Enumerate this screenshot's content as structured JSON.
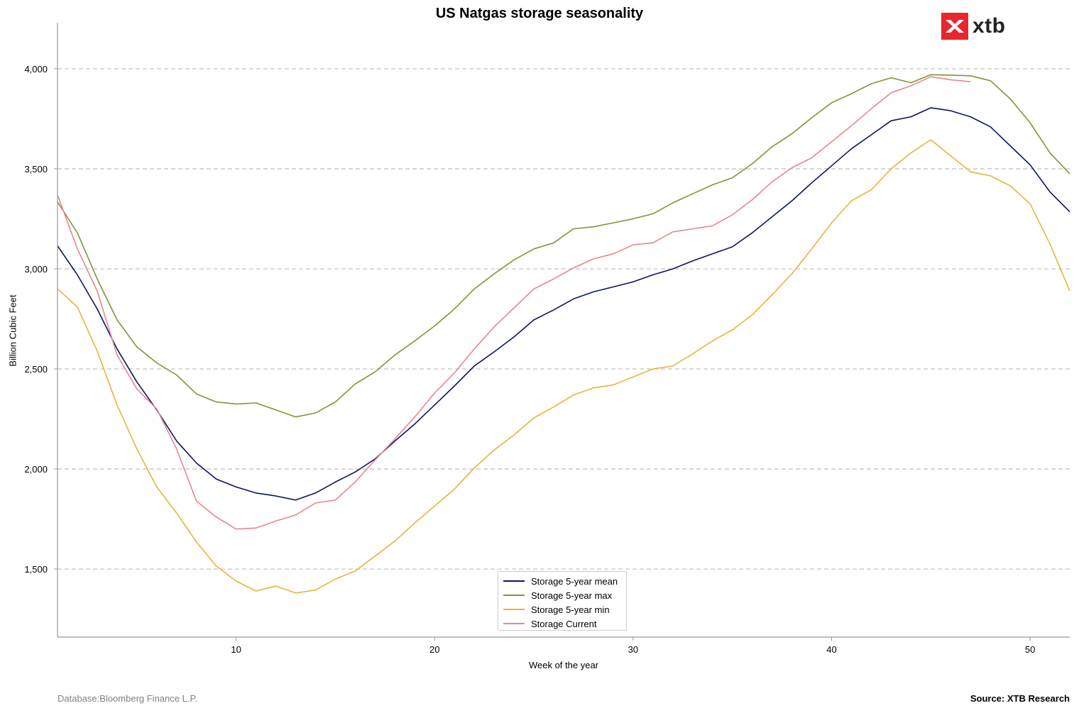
{
  "header": {
    "title": "US Natgas storage seasonality"
  },
  "logo": {
    "text": "xtb",
    "color": "#e8262d"
  },
  "footer": {
    "left": "Database:Bloomberg Finance L.P.",
    "right": "Source: XTB Research"
  },
  "chart_data": {
    "type": "line",
    "title": "US Natgas storage seasonality",
    "xlabel": "Week of the year",
    "ylabel": "Billion Cubic Feet",
    "xlim": [
      1,
      52
    ],
    "ylim": [
      1160,
      4230
    ],
    "xticks": [
      10,
      20,
      30,
      40,
      50
    ],
    "yticks": [
      1500,
      2000,
      2500,
      3000,
      3500,
      4000
    ],
    "ytick_labels": [
      "1,500",
      "2,000",
      "2,500",
      "3,000",
      "3,500",
      "4,000"
    ],
    "grid": "horizontal dashed",
    "legend_position": "bottom-center",
    "series": [
      {
        "name": "Storage 5-year mean",
        "color": "#0b1466",
        "x": [
          1,
          2,
          3,
          4,
          5,
          6,
          7,
          8,
          9,
          10,
          11,
          12,
          13,
          14,
          15,
          16,
          17,
          18,
          19,
          20,
          21,
          22,
          23,
          24,
          25,
          26,
          27,
          28,
          29,
          30,
          31,
          32,
          33,
          34,
          35,
          36,
          37,
          38,
          39,
          40,
          41,
          42,
          43,
          44,
          45,
          46,
          47,
          48,
          49,
          50,
          51,
          52
        ],
        "values": [
          3115,
          2970,
          2800,
          2600,
          2435,
          2295,
          2140,
          2030,
          1950,
          1910,
          1880,
          1865,
          1845,
          1880,
          1935,
          1985,
          2050,
          2140,
          2225,
          2320,
          2415,
          2515,
          2585,
          2660,
          2745,
          2795,
          2850,
          2885,
          2910,
          2935,
          2970,
          3000,
          3040,
          3075,
          3110,
          3180,
          3260,
          3340,
          3430,
          3515,
          3600,
          3670,
          3740,
          3760,
          3805,
          3790,
          3760,
          3710,
          3615,
          3520,
          3385,
          3285
        ]
      },
      {
        "name": "Storage 5-year max",
        "color": "#7f9633",
        "x": [
          1,
          2,
          3,
          4,
          5,
          6,
          7,
          8,
          9,
          10,
          11,
          12,
          13,
          14,
          15,
          16,
          17,
          18,
          19,
          20,
          21,
          22,
          23,
          24,
          25,
          26,
          27,
          28,
          29,
          30,
          31,
          32,
          33,
          34,
          35,
          36,
          37,
          38,
          39,
          40,
          41,
          42,
          43,
          44,
          45,
          46,
          47,
          48,
          49,
          50,
          51,
          52
        ],
        "values": [
          3335,
          3180,
          2950,
          2745,
          2610,
          2530,
          2470,
          2375,
          2335,
          2325,
          2330,
          2295,
          2260,
          2280,
          2335,
          2425,
          2485,
          2570,
          2640,
          2715,
          2800,
          2900,
          2975,
          3045,
          3100,
          3130,
          3200,
          3210,
          3230,
          3250,
          3275,
          3330,
          3375,
          3420,
          3455,
          3525,
          3610,
          3675,
          3755,
          3830,
          3875,
          3925,
          3955,
          3930,
          3970,
          3968,
          3965,
          3940,
          3850,
          3730,
          3580,
          3475
        ]
      },
      {
        "name": "Storage 5-year min",
        "color": "#e6b43c",
        "x": [
          1,
          2,
          3,
          4,
          5,
          6,
          7,
          8,
          9,
          10,
          11,
          12,
          13,
          14,
          15,
          16,
          17,
          18,
          19,
          20,
          21,
          22,
          23,
          24,
          25,
          26,
          27,
          28,
          29,
          30,
          31,
          32,
          33,
          34,
          35,
          36,
          37,
          38,
          39,
          40,
          41,
          42,
          43,
          44,
          45,
          46,
          47,
          48,
          49,
          50,
          51,
          52
        ],
        "values": [
          2900,
          2810,
          2590,
          2320,
          2100,
          1910,
          1780,
          1635,
          1515,
          1440,
          1390,
          1415,
          1380,
          1395,
          1450,
          1490,
          1565,
          1640,
          1730,
          1815,
          1900,
          2005,
          2095,
          2170,
          2255,
          2310,
          2370,
          2405,
          2420,
          2460,
          2500,
          2515,
          2575,
          2640,
          2695,
          2770,
          2870,
          2975,
          3100,
          3230,
          3340,
          3395,
          3500,
          3580,
          3645,
          3565,
          3485,
          3465,
          3415,
          3325,
          3125,
          2890
        ]
      },
      {
        "name": "Storage Current",
        "color": "#e8868e",
        "x": [
          1,
          2,
          3,
          4,
          5,
          6,
          7,
          8,
          9,
          10,
          11,
          12,
          13,
          14,
          15,
          16,
          17,
          18,
          19,
          20,
          21,
          22,
          23,
          24,
          25,
          26,
          27,
          28,
          29,
          30,
          31,
          32,
          33,
          34,
          35,
          36,
          37,
          38,
          39,
          40,
          41,
          42,
          43,
          44,
          45,
          46,
          47
        ],
        "values": [
          3370,
          3100,
          2890,
          2570,
          2400,
          2300,
          2100,
          1840,
          1760,
          1700,
          1705,
          1740,
          1770,
          1830,
          1845,
          1935,
          2045,
          2150,
          2260,
          2380,
          2480,
          2600,
          2710,
          2805,
          2900,
          2950,
          3005,
          3050,
          3075,
          3120,
          3130,
          3185,
          3200,
          3215,
          3270,
          3345,
          3435,
          3505,
          3555,
          3635,
          3715,
          3800,
          3880,
          3915,
          3960,
          3945,
          3935
        ]
      }
    ]
  }
}
